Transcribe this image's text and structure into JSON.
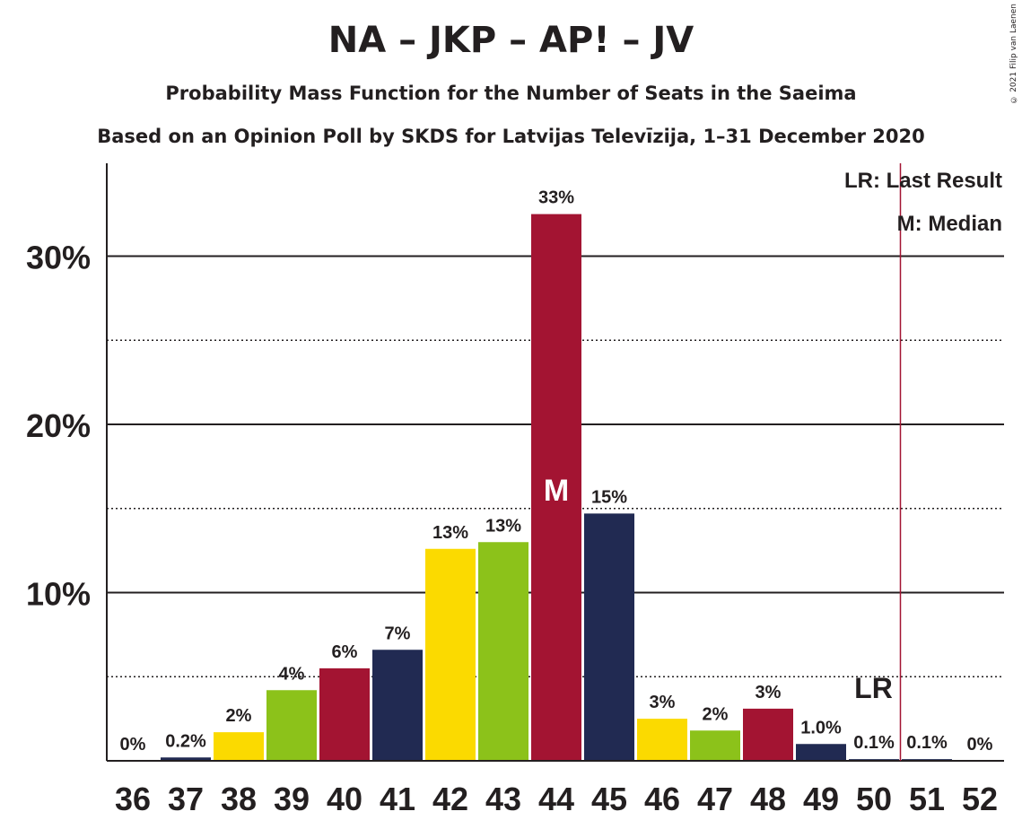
{
  "title": "NA – JKP – AP! – JV",
  "subtitle": "Probability Mass Function for the Number of Seats in the Saeima",
  "subtitle2": "Based on an Opinion Poll by SKDS for Latvijas Televīzija, 1–31 December 2020",
  "copyright": "© 2021 Filip van Laenen",
  "legend": {
    "last_result": "LR: Last Result",
    "median": "M: Median"
  },
  "markers": {
    "median_label": "M",
    "median_seat": 44,
    "lr_label": "LR",
    "lr_seat": 50.5
  },
  "colors": {
    "red": "#a31432",
    "navy": "#212a52",
    "yellow": "#fbda00",
    "green": "#8cc21a",
    "text": "#231f20"
  },
  "chart_data": {
    "type": "bar",
    "categories": [
      "36",
      "37",
      "38",
      "39",
      "40",
      "41",
      "42",
      "43",
      "44",
      "45",
      "46",
      "47",
      "48",
      "49",
      "50",
      "51",
      "52"
    ],
    "values": [
      0,
      0.2,
      1.7,
      4.2,
      5.5,
      6.6,
      12.6,
      13.0,
      32.5,
      14.7,
      2.5,
      1.8,
      3.1,
      1.0,
      0.1,
      0.1,
      0
    ],
    "labels": [
      "0%",
      "0.2%",
      "2%",
      "4%",
      "6%",
      "7%",
      "13%",
      "13%",
      "33%",
      "15%",
      "3%",
      "2%",
      "3%",
      "1.0%",
      "0.1%",
      "0.1%",
      "0%"
    ],
    "bar_colors": [
      "navy",
      "navy",
      "yellow",
      "green",
      "red",
      "navy",
      "yellow",
      "green",
      "red",
      "navy",
      "yellow",
      "green",
      "red",
      "navy",
      "navy",
      "navy",
      "navy"
    ],
    "ylim": [
      0,
      35
    ],
    "yticks": [
      {
        "value": 10,
        "label": "10%"
      },
      {
        "value": 20,
        "label": "20%"
      },
      {
        "value": 30,
        "label": "30%"
      }
    ],
    "minor_gridlines": [
      5,
      15,
      25
    ],
    "title": "NA – JKP – AP! – JV",
    "xlabel": "",
    "ylabel": ""
  }
}
